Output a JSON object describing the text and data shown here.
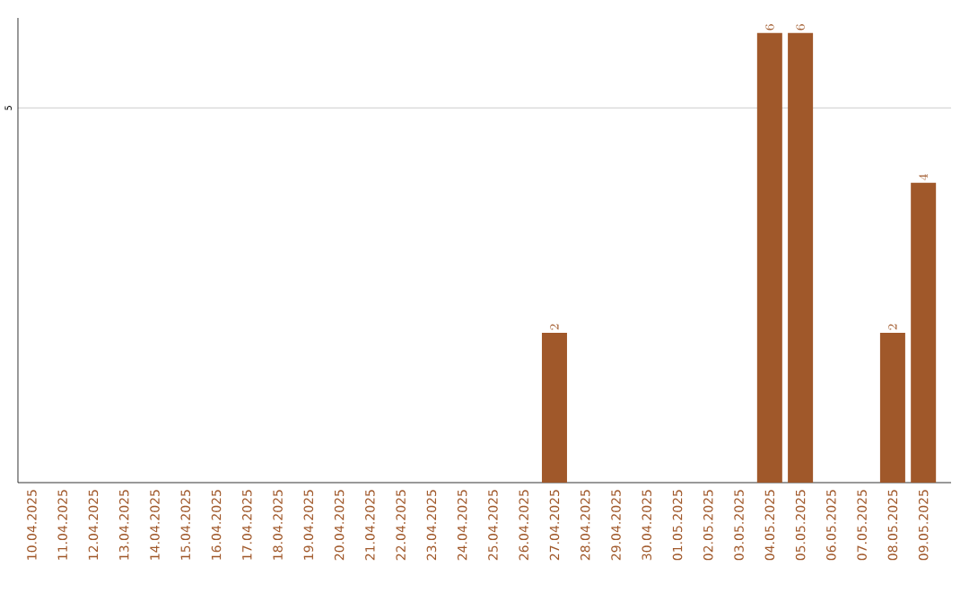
{
  "chart_data": {
    "type": "bar",
    "categories": [
      "10.04.2025",
      "11.04.2025",
      "12.04.2025",
      "13.04.2025",
      "14.04.2025",
      "15.04.2025",
      "16.04.2025",
      "17.04.2025",
      "18.04.2025",
      "19.04.2025",
      "20.04.2025",
      "21.04.2025",
      "22.04.2025",
      "23.04.2025",
      "24.04.2025",
      "25.04.2025",
      "26.04.2025",
      "27.04.2025",
      "28.04.2025",
      "29.04.2025",
      "30.04.2025",
      "01.05.2025",
      "02.05.2025",
      "03.05.2025",
      "04.05.2025",
      "05.05.2025",
      "06.05.2025",
      "07.05.2025",
      "08.05.2025",
      "09.05.2025"
    ],
    "values": [
      null,
      null,
      null,
      null,
      null,
      null,
      null,
      null,
      null,
      null,
      null,
      null,
      null,
      null,
      null,
      null,
      null,
      2,
      null,
      null,
      null,
      null,
      null,
      null,
      6,
      6,
      null,
      null,
      2,
      4
    ],
    "color": "#a0582a",
    "ylim": [
      0,
      6.2
    ],
    "yticks": [
      5
    ],
    "grid": "y",
    "data_labels": true
  }
}
